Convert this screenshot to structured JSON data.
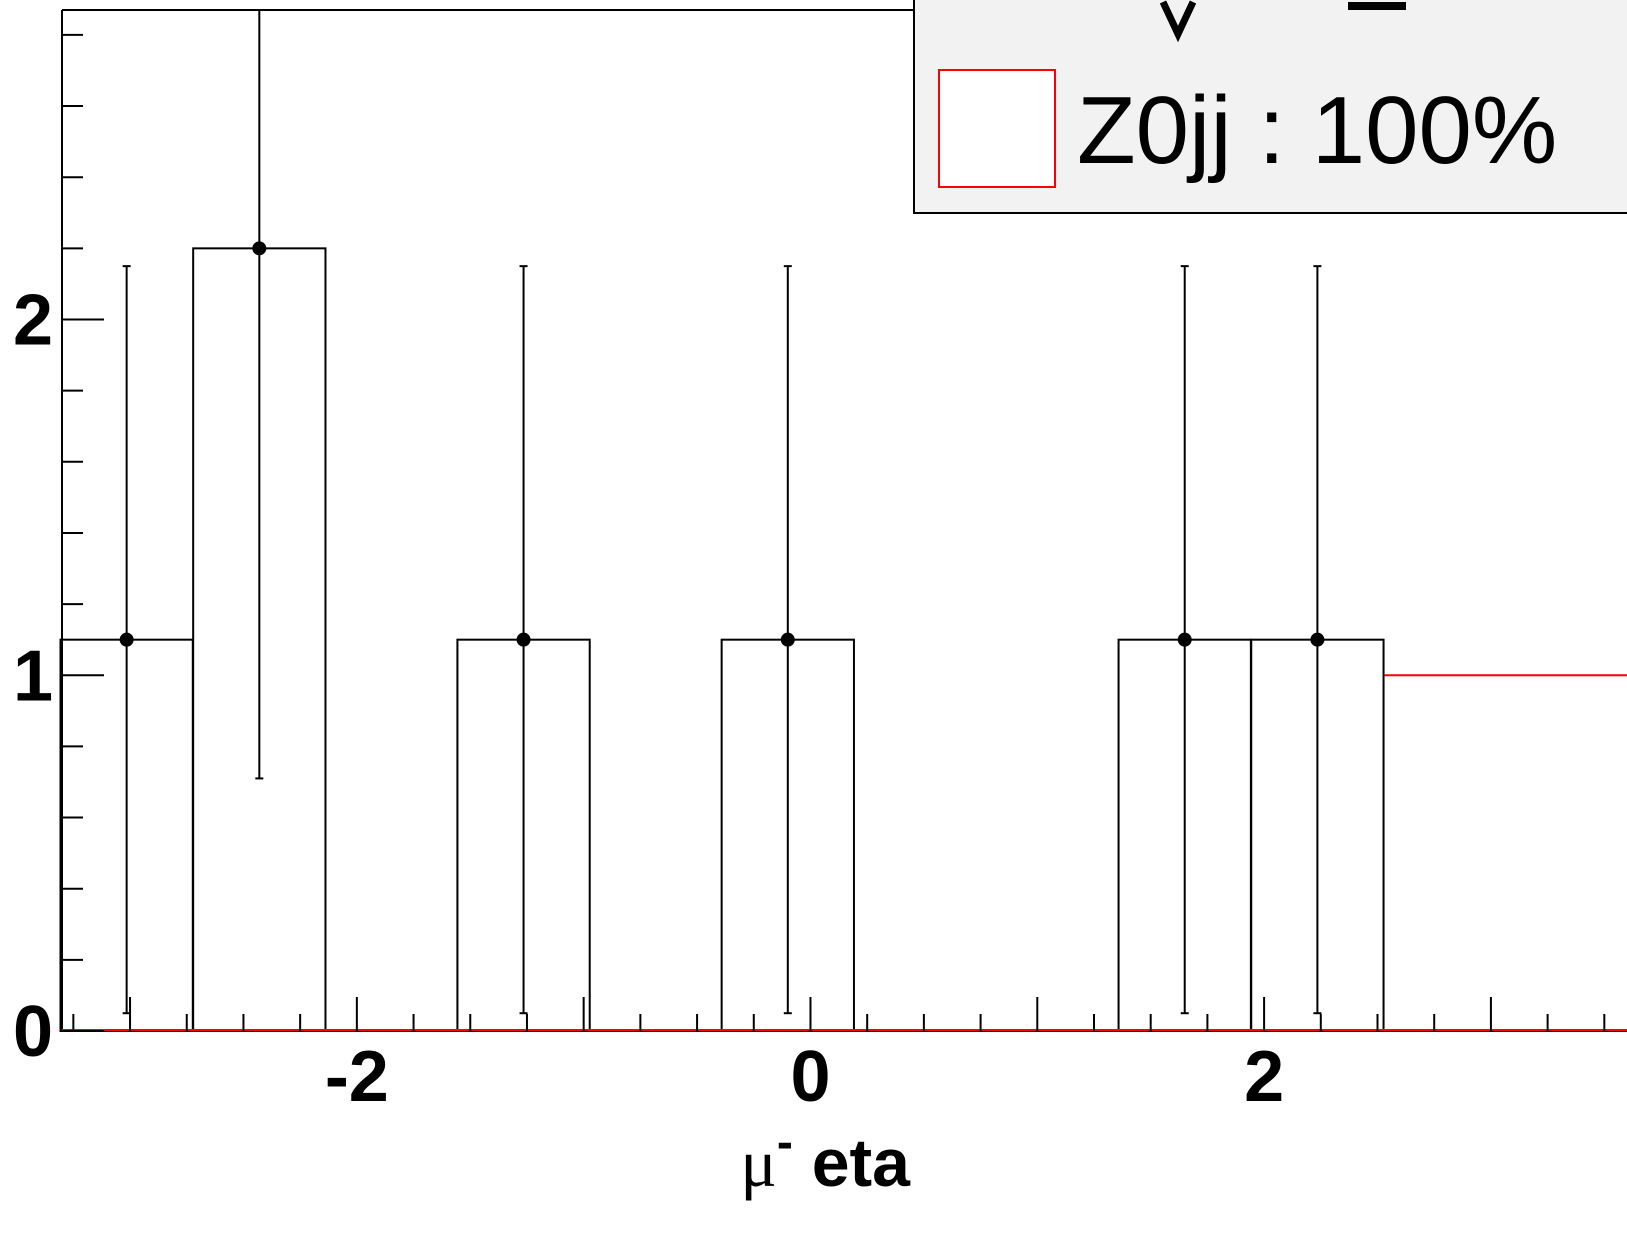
{
  "chart_data": {
    "type": "bar",
    "xlabel_symbol": "μ",
    "xlabel_superscript": "-",
    "xlabel_rest": " eta",
    "xlim": [
      -3.3,
      3.6
    ],
    "ylim": [
      0,
      2.87
    ],
    "xticks": [
      -2,
      0,
      2
    ],
    "xtick_labels": [
      "-2",
      "0",
      "2"
    ],
    "yticks": [
      0,
      1,
      2
    ],
    "ytick_labels": [
      "0",
      "1",
      "2"
    ],
    "bin_width": 0.5833,
    "bins": [
      {
        "center": -3.015,
        "value": 1.1,
        "err_low": 0.05,
        "err_high": 2.15
      },
      {
        "center": -2.43,
        "value": 2.2,
        "err_low": 0.71,
        "err_high": 2.87
      },
      {
        "center": -1.265,
        "value": 1.1,
        "err_low": 0.05,
        "err_high": 2.15
      },
      {
        "center": -0.1,
        "value": 1.1,
        "err_low": 0.05,
        "err_high": 2.15
      },
      {
        "center": 1.65,
        "value": 1.1,
        "err_low": 0.05,
        "err_high": 2.15
      },
      {
        "center": 2.235,
        "value": 1.1,
        "err_low": 0.05,
        "err_high": 2.15
      }
    ],
    "series": [
      {
        "name": "Z0jj : 100%",
        "color": "#ff0000",
        "from_x": 2.53,
        "value": 1.0
      }
    ],
    "legend": {
      "position": "top-right",
      "entries": [
        {
          "label": "Z0jj : 100%",
          "border_color": "#ff0000"
        }
      ]
    },
    "grid": false
  }
}
